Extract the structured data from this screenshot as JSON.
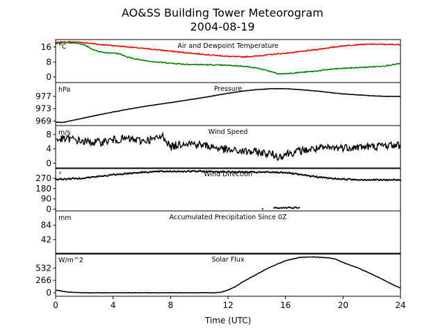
{
  "figure": {
    "title_line1": "AO&SS Building Tower Meteorogram",
    "title_line2": "2004-08-19",
    "xlabel": "Time (UTC)"
  },
  "chart_data": [
    {
      "type": "line",
      "title": "Air and Dewpoint Temperature",
      "unit": "°C",
      "xlim": [
        0,
        24
      ],
      "ylim": [
        -3,
        20
      ],
      "yticks": [
        0,
        8,
        16
      ],
      "series": [
        {
          "color": "#ff0000",
          "x": [
            0,
            0.5,
            1,
            1.5,
            2,
            2.5,
            3,
            4,
            5,
            6,
            7,
            8,
            9,
            10,
            11,
            12,
            13,
            14,
            15,
            16,
            17,
            18,
            19,
            20,
            21,
            22,
            23,
            24
          ],
          "y": [
            18.5,
            18.6,
            18.7,
            18.6,
            18.3,
            17.9,
            17.4,
            16.8,
            16.1,
            15.3,
            14.6,
            13.8,
            13.0,
            12.3,
            11.6,
            11.0,
            10.7,
            11.2,
            12.0,
            12.7,
            13.5,
            14.5,
            15.6,
            16.6,
            17.3,
            17.5,
            17.4,
            17.3
          ]
        },
        {
          "color": "#008000",
          "x": [
            0,
            0.5,
            1,
            1.5,
            2,
            2.5,
            3,
            3.5,
            4,
            4.5,
            5,
            6,
            7,
            8,
            9,
            10,
            11,
            12,
            13,
            14,
            15,
            15.5,
            16,
            17,
            18,
            19,
            20,
            21,
            22,
            23,
            24
          ],
          "y": [
            18.0,
            18.2,
            18.3,
            18.0,
            17.2,
            15.0,
            13.6,
            13.0,
            12.8,
            12.3,
            10.5,
            9.0,
            8.0,
            7.4,
            6.8,
            6.6,
            6.4,
            6.2,
            5.8,
            4.8,
            2.8,
            1.6,
            1.8,
            2.4,
            3.0,
            4.0,
            4.6,
            5.0,
            5.4,
            6.0,
            7.2
          ]
        }
      ]
    },
    {
      "type": "line",
      "title": "Pressure",
      "unit": "hPa",
      "xlim": [
        0,
        24
      ],
      "ylim": [
        967.5,
        981.5
      ],
      "yticks": [
        969,
        973,
        977
      ],
      "series": [
        {
          "color": "#000000",
          "x": [
            0,
            0.5,
            1,
            2,
            3,
            4,
            5,
            6,
            7,
            8,
            9,
            10,
            11,
            12,
            13,
            14,
            15,
            16,
            17,
            18,
            19,
            20,
            21,
            22,
            23,
            24
          ],
          "y": [
            968.6,
            968.5,
            969.0,
            970.0,
            971.0,
            971.9,
            972.8,
            973.6,
            974.3,
            975.0,
            975.7,
            976.4,
            977.2,
            978.0,
            978.7,
            979.2,
            979.5,
            979.5,
            979.2,
            978.8,
            978.3,
            977.8,
            977.5,
            977.2,
            977.0,
            977.0
          ]
        }
      ]
    },
    {
      "type": "line",
      "title": "Wind Speed",
      "unit": "m/s",
      "xlim": [
        0,
        24
      ],
      "ylim": [
        -1.5,
        10.5
      ],
      "yticks": [
        0,
        4,
        8
      ],
      "series": [
        {
          "color": "#000000",
          "x": [
            0,
            1,
            2,
            3,
            4,
            5,
            6,
            7,
            7.5,
            8,
            9,
            10,
            11,
            12,
            13,
            14,
            15,
            15.5,
            16,
            17,
            18,
            19,
            20,
            21,
            22,
            23,
            24
          ],
          "y": [
            6.6,
            6.8,
            6.0,
            5.8,
            6.5,
            6.8,
            6.2,
            6.8,
            7.6,
            4.5,
            5.8,
            5.2,
            4.5,
            3.6,
            3.3,
            3.1,
            2.6,
            1.8,
            2.6,
            3.4,
            4.0,
            4.2,
            4.4,
            4.5,
            4.6,
            5.0,
            5.0
          ]
        }
      ]
    },
    {
      "type": "scatter",
      "title": "Wind Direction",
      "unit": "°",
      "xlim": [
        0,
        24
      ],
      "ylim": [
        -15,
        360
      ],
      "yticks": [
        0,
        90,
        180,
        270
      ],
      "series": [
        {
          "color": "#000000",
          "x": [
            0,
            1,
            2,
            3,
            4,
            5,
            6,
            7,
            8,
            9,
            10,
            11,
            12,
            13,
            14,
            15,
            16,
            17,
            18,
            19,
            20,
            21,
            22,
            23,
            24
          ],
          "y": [
            260,
            265,
            272,
            285,
            300,
            312,
            322,
            328,
            330,
            330,
            330,
            328,
            326,
            324,
            322,
            322,
            320,
            300,
            285,
            270,
            262,
            258,
            256,
            255,
            255
          ]
        }
      ]
    },
    {
      "type": "line",
      "title": "Accumulated Precipitation Since 0Z",
      "unit": "mm",
      "xlim": [
        0,
        24
      ],
      "ylim": [
        0,
        126
      ],
      "yticks": [
        42,
        84
      ],
      "series": [
        {
          "color": "#000000",
          "x": [
            0,
            24
          ],
          "y": [
            0,
            0
          ]
        }
      ]
    },
    {
      "type": "line",
      "title": "Solar Flux",
      "unit": "W/m^2",
      "xlim": [
        0,
        24
      ],
      "ylim": [
        -75,
        850
      ],
      "yticks": [
        0,
        266,
        532
      ],
      "series": [
        {
          "color": "#000000",
          "x": [
            0,
            0.5,
            1,
            2,
            4,
            6,
            8,
            10,
            11,
            11.5,
            12,
            12.5,
            13,
            14,
            15,
            16,
            17,
            18,
            19,
            19.5,
            20,
            21,
            22,
            23,
            23.5,
            24
          ],
          "y": [
            60,
            30,
            10,
            0,
            0,
            0,
            0,
            0,
            0,
            10,
            60,
            130,
            230,
            400,
            560,
            690,
            760,
            770,
            750,
            720,
            650,
            540,
            400,
            250,
            170,
            100
          ]
        }
      ]
    }
  ],
  "x_axis": {
    "ticks": [
      0,
      4,
      8,
      12,
      16,
      20,
      24
    ]
  }
}
